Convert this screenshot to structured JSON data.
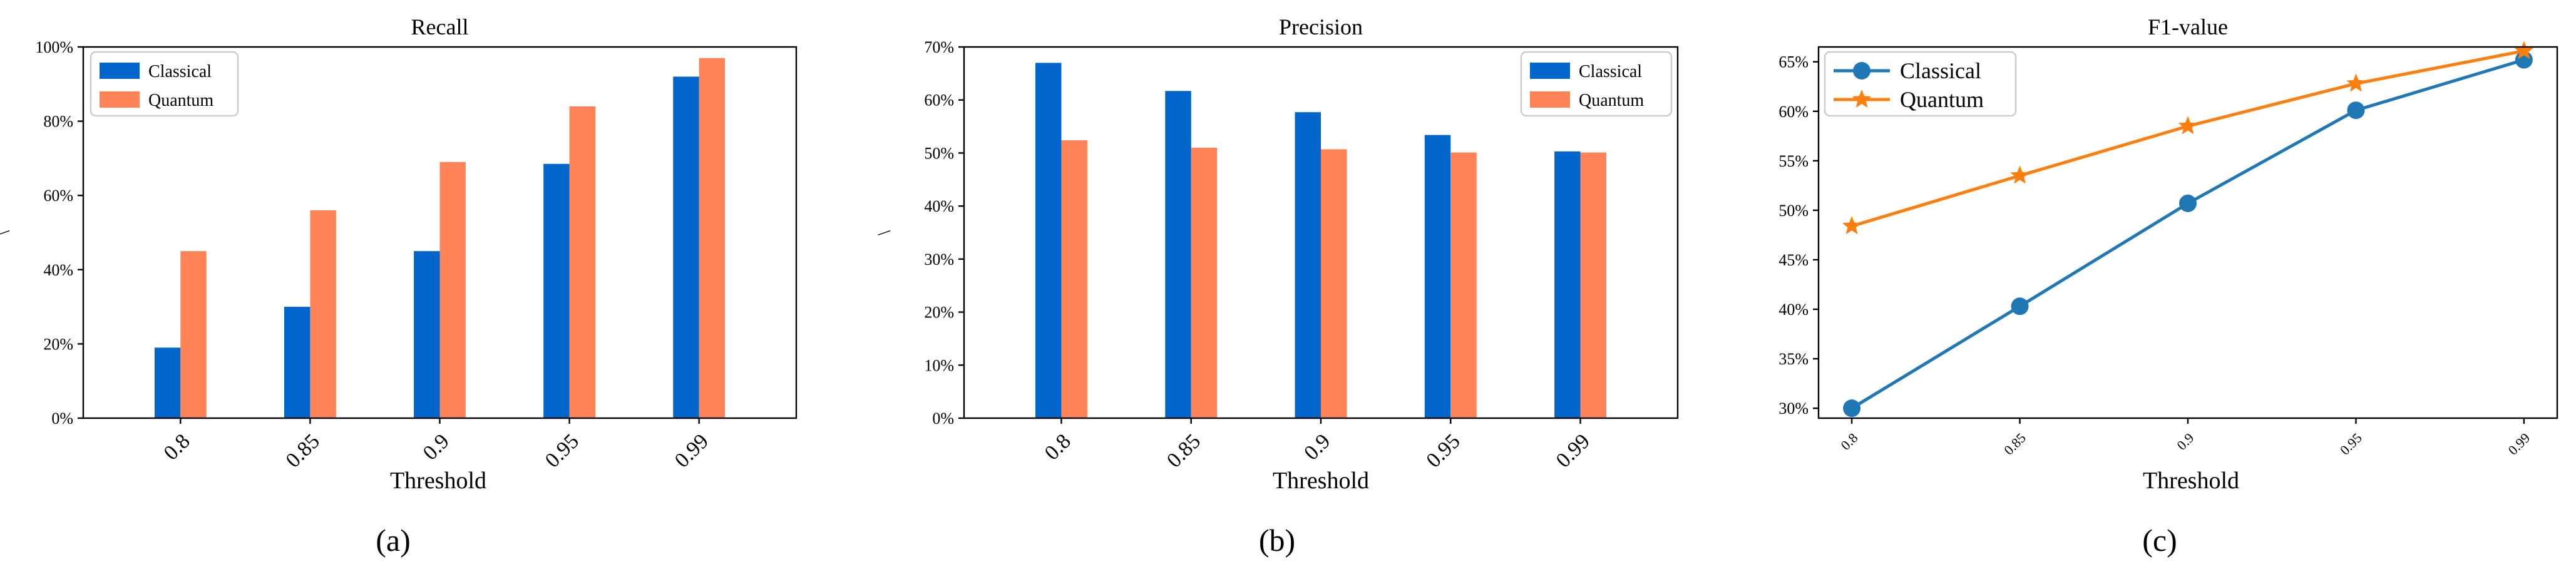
{
  "chart_data": [
    {
      "panel_label": "(a)",
      "type": "bar",
      "title": "Recall",
      "xlabel": "Threshold",
      "ylabel": "\\",
      "categories": [
        "0.8",
        "0.85",
        "0.9",
        "0.95",
        "0.99"
      ],
      "series": [
        {
          "name": "Classical",
          "color": "#0066cc",
          "values": [
            19,
            30,
            45,
            68.5,
            92
          ]
        },
        {
          "name": "Quantum",
          "color": "#ff8356",
          "values": [
            45,
            56,
            69,
            84,
            97
          ]
        }
      ],
      "ylim": [
        0,
        100
      ],
      "yticks": [
        0,
        20,
        40,
        60,
        80,
        100
      ],
      "ytick_labels": [
        "0%",
        "20%",
        "40%",
        "60%",
        "80%",
        "100%"
      ],
      "legend": "top-left",
      "grid": false
    },
    {
      "panel_label": "(b)",
      "type": "bar",
      "title": "Precision",
      "xlabel": "Threshold",
      "ylabel": "\\",
      "categories": [
        "0.8",
        "0.85",
        "0.9",
        "0.95",
        "0.99"
      ],
      "series": [
        {
          "name": "Classical",
          "color": "#0066cc",
          "values": [
            67,
            61.7,
            57.7,
            53.4,
            50.3
          ]
        },
        {
          "name": "Quantum",
          "color": "#ff8356",
          "values": [
            52.4,
            51,
            50.7,
            50.1,
            50.1
          ]
        }
      ],
      "ylim": [
        0,
        70
      ],
      "yticks": [
        0,
        10,
        20,
        30,
        40,
        50,
        60,
        70
      ],
      "ytick_labels": [
        "0%",
        "10%",
        "20%",
        "30%",
        "40%",
        "50%",
        "60%",
        "70%"
      ],
      "legend": "top-right",
      "grid": false
    },
    {
      "panel_label": "(c)",
      "type": "line",
      "title": "F1-value",
      "xlabel": "Threshold",
      "ylabel": "",
      "categories": [
        "0.8",
        "0.85",
        "0.9",
        "0.95",
        "0.99"
      ],
      "series": [
        {
          "name": "Classical",
          "color": "#1f77b4",
          "marker": "circle",
          "values": [
            30,
            40.3,
            50.7,
            60.1,
            65.2
          ]
        },
        {
          "name": "Quantum",
          "color": "#ff7f0e",
          "marker": "star",
          "values": [
            48.4,
            53.5,
            58.5,
            62.8,
            66.1
          ]
        }
      ],
      "ylim": [
        29,
        66.5
      ],
      "yticks": [
        30,
        35,
        40,
        45,
        50,
        55,
        60,
        65
      ],
      "ytick_labels": [
        "30%",
        "35%",
        "40%",
        "45%",
        "50%",
        "55%",
        "60%",
        "65%"
      ],
      "legend": "top-left",
      "grid": false
    }
  ]
}
